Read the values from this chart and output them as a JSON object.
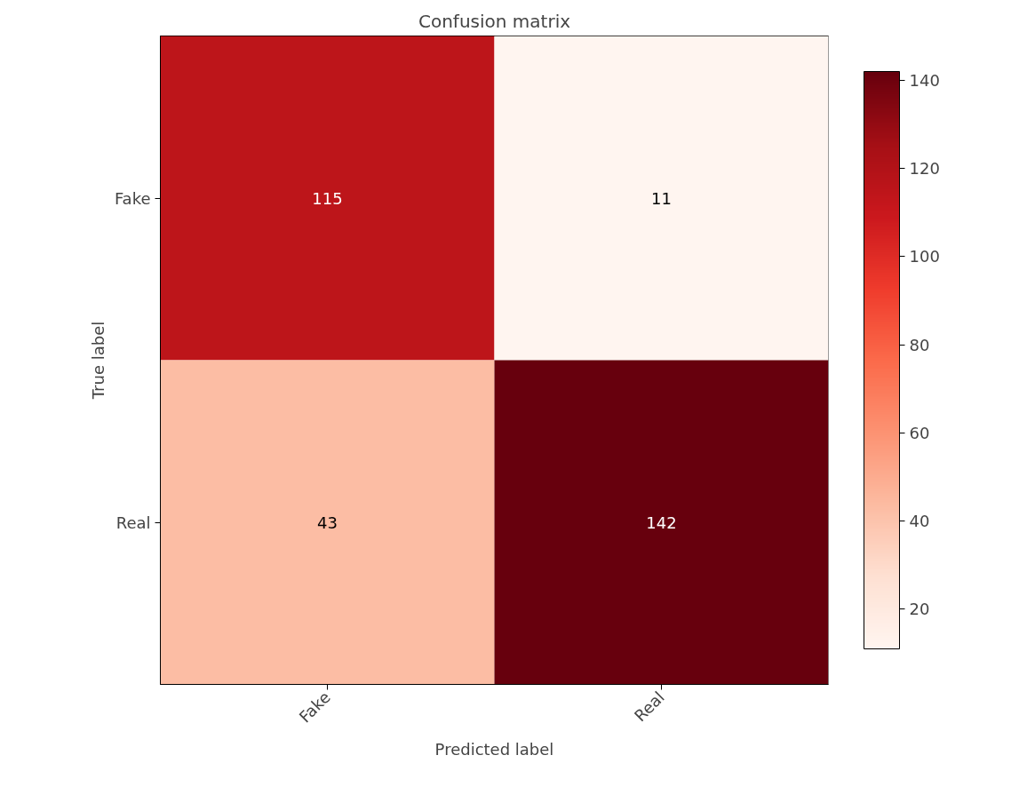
{
  "chart_data": {
    "type": "heatmap",
    "title": "Confusion matrix",
    "xlabel": "Predicted label",
    "ylabel": "True label",
    "categories": [
      "Fake",
      "Real"
    ],
    "y_categories": [
      "Fake",
      "Real"
    ],
    "cells": [
      [
        115,
        11
      ],
      [
        43,
        142
      ]
    ],
    "clim": [
      11,
      142
    ],
    "cticks": [
      20,
      40,
      60,
      80,
      100,
      120,
      140
    ],
    "data_labels": true
  }
}
